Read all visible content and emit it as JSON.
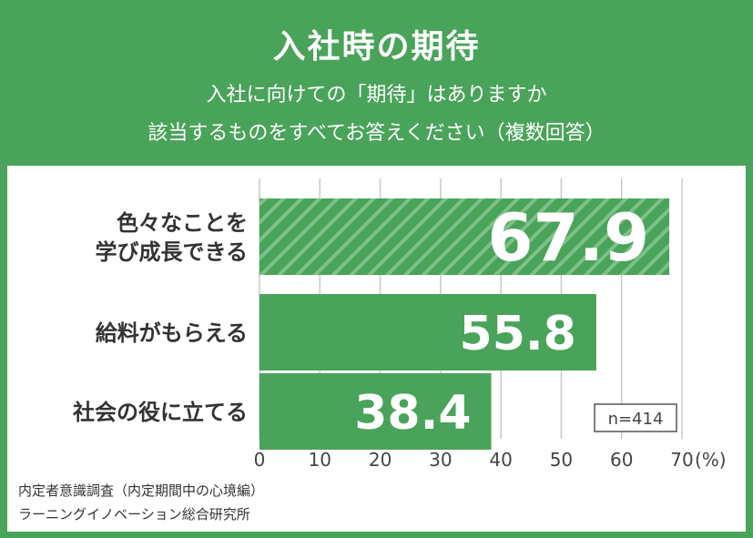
{
  "header": {
    "title": "入社時の期待",
    "subtitle_line1": "入社に向けての「期待」はありますか",
    "subtitle_line2": "該当するものをすべてお答えください（複数回答）"
  },
  "chart_data": {
    "type": "bar",
    "orientation": "horizontal",
    "categories": [
      "色々なことを\n学び成長できる",
      "給料がもらえる",
      "社会の役に立てる"
    ],
    "values": [
      67.9,
      55.8,
      38.4
    ],
    "data_labels": [
      "67.9",
      "55.8",
      "38.4"
    ],
    "highlight_index": 0,
    "xlim": [
      0,
      70
    ],
    "xticks": [
      "0",
      "10",
      "20",
      "30",
      "40",
      "50",
      "60",
      "70"
    ],
    "x_unit": "(%)",
    "grid": true,
    "annotation": "n=414"
  },
  "colors": {
    "brand": "#4aa35a",
    "bar": "#4aa35a",
    "grid": "#c8c8c8"
  },
  "footer": {
    "line1": "内定者意識調査（内定期間中の心境編）",
    "line2": "ラーニングイノベーション総合研究所"
  }
}
